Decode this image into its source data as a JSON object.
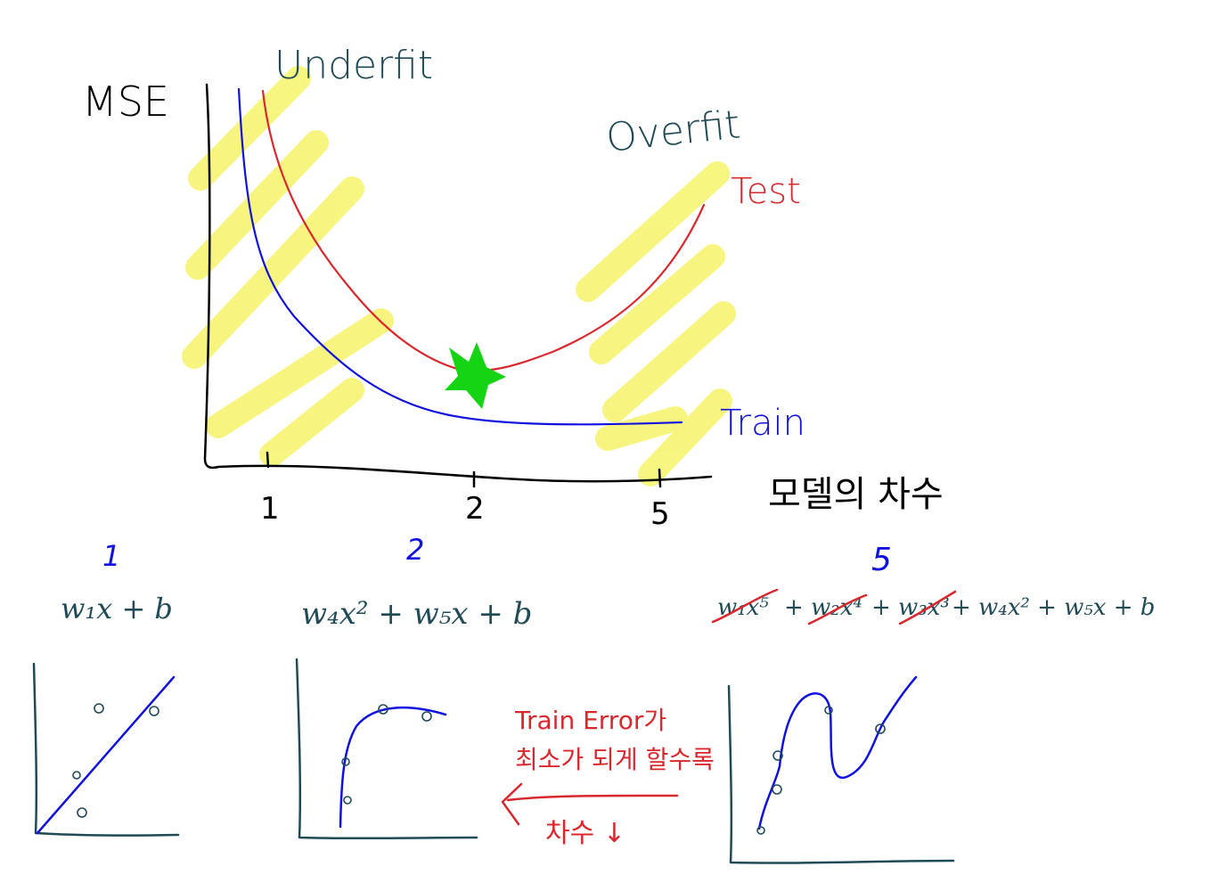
{
  "colors": {
    "ink_dark": "#1f4a56",
    "ink_black": "#000000",
    "train_blue": "#1010e0",
    "test_red": "#d8282e",
    "highlight_yellow": "#f6f46a",
    "star_green": "#14d414",
    "strike_red": "#d8282e"
  },
  "chart_data": {
    "type": "line",
    "title": "",
    "ylabel": "MSE",
    "xlabel": "모델의 차수",
    "x_ticks": [
      "1",
      "2",
      "5"
    ],
    "region_labels": {
      "left": "Underfit",
      "right": "Overfit"
    },
    "series": [
      {
        "name": "Test",
        "shape": "u-curve"
      },
      {
        "name": "Train",
        "shape": "decreasing-then-flat"
      }
    ],
    "optimum_marker": "star",
    "grid": false
  },
  "degree_labels": [
    "1",
    "2",
    "5"
  ],
  "formulas": {
    "f1": "w₁x + b",
    "f2": "w₄x² + w₅x + b",
    "f5_struck": [
      "w₁x⁵",
      "+ w₂x⁴",
      "+ w₃x³"
    ],
    "f5_rest": "+ w₄x² + w₅x + b"
  },
  "note": {
    "line1": "Train Error가",
    "line2": "최소가 되게 할수록",
    "line3": "차수 ↓"
  }
}
